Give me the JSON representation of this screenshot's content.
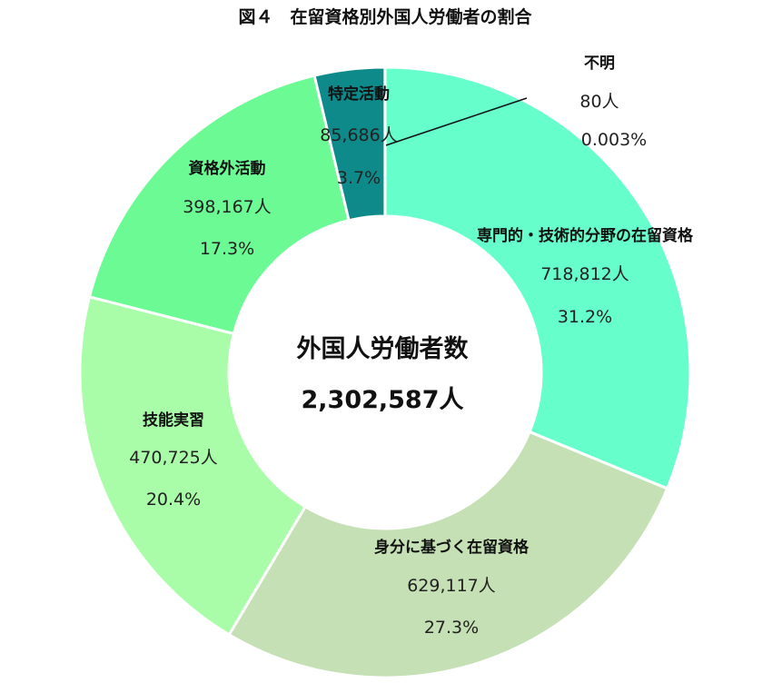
{
  "chart_data": {
    "type": "pie",
    "title": "図４　在留資格別外国人労働者の割合",
    "center_label": "外国人労働者数",
    "center_value": "2,302,587人",
    "slices": [
      {
        "name": "専門的・技術的分野の在留資格",
        "count": "718,812人",
        "percent": "31.2%",
        "value": 718812,
        "color": "#66FFCC"
      },
      {
        "name": "身分に基づく在留資格",
        "count": "629,117人",
        "percent": "27.3%",
        "value": 629117,
        "color": "#C5E0B4"
      },
      {
        "name": "技能実習",
        "count": "470,725人",
        "percent": "20.4%",
        "value": 470725,
        "color": "#A9FDA9"
      },
      {
        "name": "資格外活動",
        "count": "398,167人",
        "percent": "17.3%",
        "value": 398167,
        "color": "#6BFA93"
      },
      {
        "name": "特定活動",
        "count": "85,686人",
        "percent": "3.7%",
        "value": 85686,
        "color": "#0E8A8A"
      },
      {
        "name": "不明",
        "count": "80人",
        "percent": "0.003%",
        "value": 80,
        "color": "#66FFCC"
      }
    ]
  }
}
